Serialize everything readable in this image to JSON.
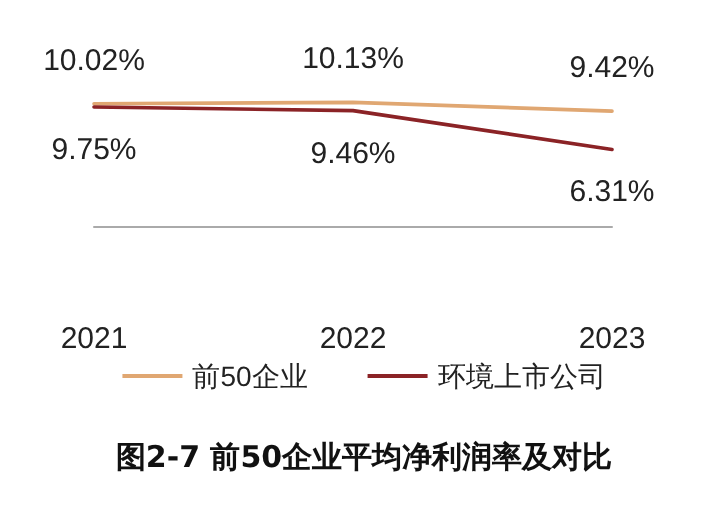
{
  "chart_data": {
    "type": "line",
    "title": "图2-7 前50企业平均净利润率及对比",
    "categories": [
      "2021",
      "2022",
      "2023"
    ],
    "series": [
      {
        "name": "前50企业",
        "color": "#e0a772",
        "values": [
          10.02,
          10.13,
          9.42
        ],
        "value_labels": [
          "10.02%",
          "10.13%",
          "9.42%"
        ]
      },
      {
        "name": "环境上市公司",
        "color": "#8b2326",
        "values": [
          9.75,
          9.46,
          6.31
        ],
        "value_labels": [
          "9.75%",
          "9.46%",
          "6.31%"
        ]
      }
    ],
    "legend": "bottom",
    "grid": false,
    "marker": "none",
    "line_style": "solid"
  }
}
